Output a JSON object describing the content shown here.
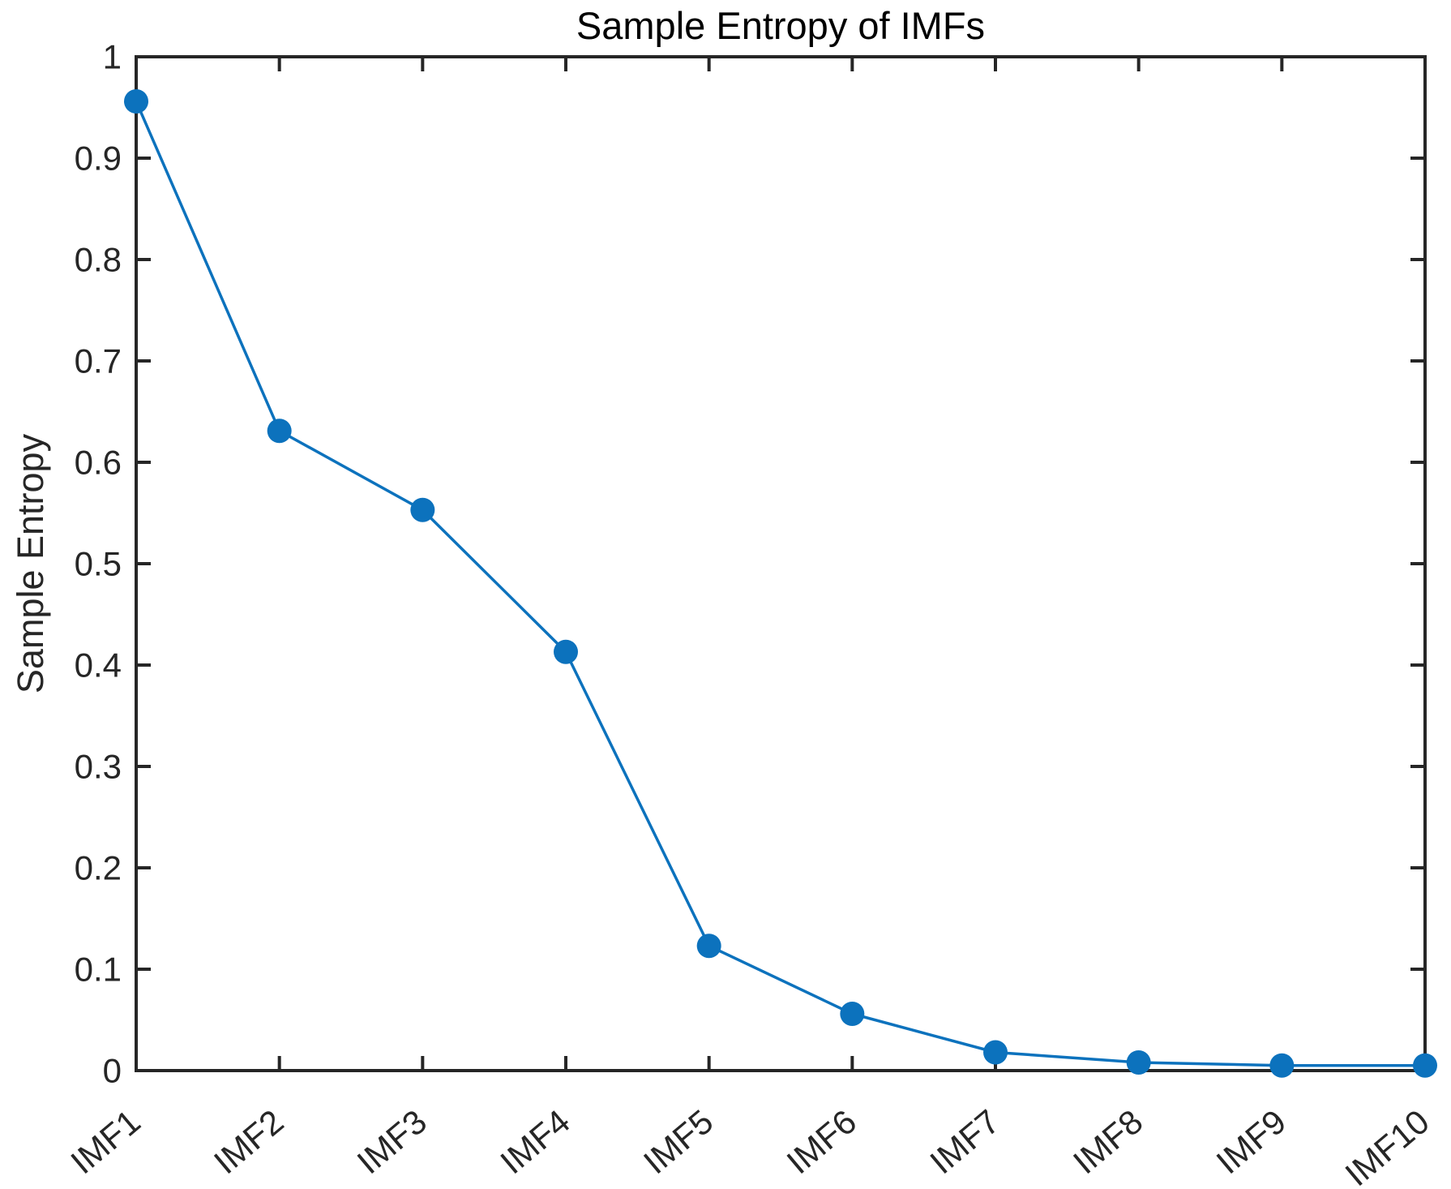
{
  "chart_data": {
    "type": "line",
    "title": "Sample Entropy of IMFs",
    "xlabel": "",
    "ylabel": "Sample Entropy",
    "categories": [
      "IMF1",
      "IMF2",
      "IMF3",
      "IMF4",
      "IMF5",
      "IMF6",
      "IMF7",
      "IMF8",
      "IMF9",
      "IMF10"
    ],
    "values": [
      0.956,
      0.631,
      0.553,
      0.413,
      0.123,
      0.056,
      0.018,
      0.008,
      0.005,
      0.005
    ],
    "series_name": "Sample Entropy",
    "ylim": [
      0,
      1
    ],
    "y_tick_values": [
      0,
      0.1,
      0.2,
      0.3,
      0.4,
      0.5,
      0.6,
      0.7,
      0.8,
      0.9,
      1
    ],
    "y_tick_labels": [
      "0",
      "0.1",
      "0.2",
      "0.3",
      "0.4",
      "0.5",
      "0.6",
      "0.7",
      "0.8",
      "0.9",
      "1"
    ],
    "grid": false,
    "legend": "none",
    "box": "on",
    "tick_direction": "in",
    "x_tick_label_rotation_deg": 40,
    "line_color": "#0C72BD",
    "marker": "filled-circle",
    "marker_color": "#0C72BD",
    "axis_color": "#262626"
  }
}
